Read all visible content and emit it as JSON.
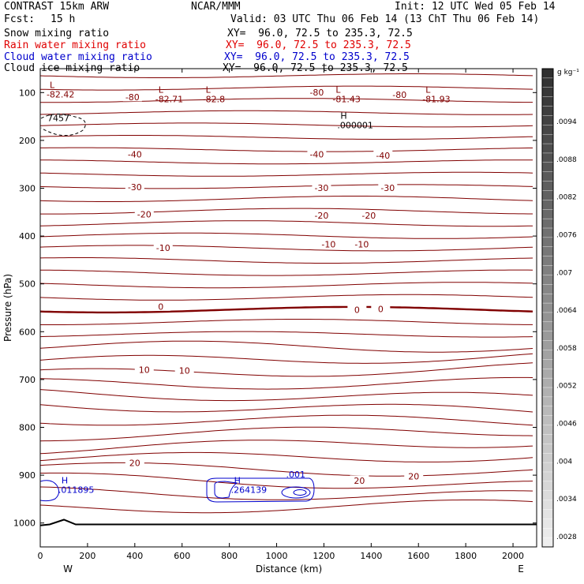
{
  "header": {
    "model": "CONTRAST 15km ARW",
    "center": "NCAR/MMM",
    "init": "Init: 12 UTC Wed 05 Feb 14",
    "fcst_label": "Fcst:",
    "fcst_value": "15 h",
    "valid": "Valid: 03 UTC Thu 06 Feb 14 (13 ChT Thu 06 Feb 14)",
    "fields": [
      {
        "name": "Snow mixing ratio",
        "xy": "XY=  96.0, 72.5 to 235.3, 72.5",
        "color": "#000000"
      },
      {
        "name": "Rain water mixing ratio",
        "xy": "XY=  96.0, 72.5 to 235.3, 72.5",
        "color": "#e00000"
      },
      {
        "name": "Cloud water mixing ratio",
        "xy": "XY=  96.0, 72.5 to 235.3, 72.5",
        "color": "#0000cc"
      },
      {
        "name": "Cloud ice mixing ratio",
        "xy": "XY=  96.0, 72.5 to 235.3, 72.5",
        "color": "#000000"
      }
    ]
  },
  "chart_data": {
    "type": "contour",
    "xlabel": "Distance (km)",
    "ylabel": "Pressure (hPa)",
    "xlim": [
      0,
      2100
    ],
    "ylim": [
      1050,
      50
    ],
    "x_ticks": [
      0,
      200,
      400,
      600,
      800,
      1000,
      1200,
      1400,
      1600,
      1800,
      2000
    ],
    "y_ticks": [
      100,
      200,
      300,
      400,
      500,
      600,
      700,
      800,
      900,
      1000
    ],
    "x_end_labels": {
      "left": "W",
      "right": "E"
    },
    "temperature_contour_color": "#800000",
    "contour_labels": [
      {
        "text": "-80",
        "x": 390,
        "p": 110
      },
      {
        "text": "-80",
        "x": 1170,
        "p": 100
      },
      {
        "text": "-80",
        "x": 1520,
        "p": 105
      },
      {
        "text": "-40",
        "x": 400,
        "p": 230
      },
      {
        "text": "-40",
        "x": 1170,
        "p": 230
      },
      {
        "text": "-40",
        "x": 1450,
        "p": 232
      },
      {
        "text": "-30",
        "x": 400,
        "p": 298
      },
      {
        "text": "-30",
        "x": 1190,
        "p": 300
      },
      {
        "text": "-30",
        "x": 1470,
        "p": 300
      },
      {
        "text": "-20",
        "x": 440,
        "p": 355
      },
      {
        "text": "-20",
        "x": 1190,
        "p": 358
      },
      {
        "text": "-20",
        "x": 1390,
        "p": 358
      },
      {
        "text": "-10",
        "x": 520,
        "p": 425
      },
      {
        "text": "-10",
        "x": 1220,
        "p": 418
      },
      {
        "text": "-10",
        "x": 1360,
        "p": 418
      },
      {
        "text": "0",
        "x": 510,
        "p": 548
      },
      {
        "text": "0",
        "x": 1340,
        "p": 555
      },
      {
        "text": "0",
        "x": 1440,
        "p": 553
      },
      {
        "text": "10",
        "x": 440,
        "p": 680
      },
      {
        "text": "10",
        "x": 610,
        "p": 682
      },
      {
        "text": "20",
        "x": 400,
        "p": 875
      },
      {
        "text": "20",
        "x": 1350,
        "p": 912
      },
      {
        "text": "20",
        "x": 1580,
        "p": 903
      }
    ],
    "extrema_labels": [
      {
        "symbol": "L",
        "value": "-82.42",
        "x": 100,
        "p": 100,
        "color": "#800000"
      },
      {
        "symbol": "L",
        "value": "-82.71",
        "x": 560,
        "p": 110,
        "color": "#800000"
      },
      {
        "symbol": "L",
        "value": "-82.8",
        "x": 760,
        "p": 110,
        "color": "#800000"
      },
      {
        "symbol": "L",
        "value": "-81.43",
        "x": 1310,
        "p": 110,
        "color": "#800000"
      },
      {
        "symbol": "L",
        "value": "-81.93",
        "x": 1690,
        "p": 110,
        "color": "#800000"
      },
      {
        "symbol": "H",
        "value": ".000001",
        "x": 1330,
        "p": 165,
        "color": "#000000"
      },
      {
        "symbol": "H",
        "value": ".011895",
        "x": 150,
        "p": 927,
        "color": "#0000cc"
      },
      {
        "symbol": "H",
        "value": ".264139",
        "x": 880,
        "p": 927,
        "color": "#0000cc"
      }
    ],
    "other_labels": [
      {
        "text": "7457",
        "x": 30,
        "p": 153,
        "color": "#000000"
      },
      {
        "text": ".001",
        "x": 1040,
        "p": 898,
        "color": "#0000cc"
      }
    ],
    "colorbar": {
      "units": "g kg⁻¹",
      "ticks": [
        ".0094",
        ".0088",
        ".0082",
        ".0076",
        ".007",
        ".0064",
        ".0058",
        ".0052",
        ".0046",
        ".004",
        ".0034",
        ".0028"
      ]
    }
  }
}
